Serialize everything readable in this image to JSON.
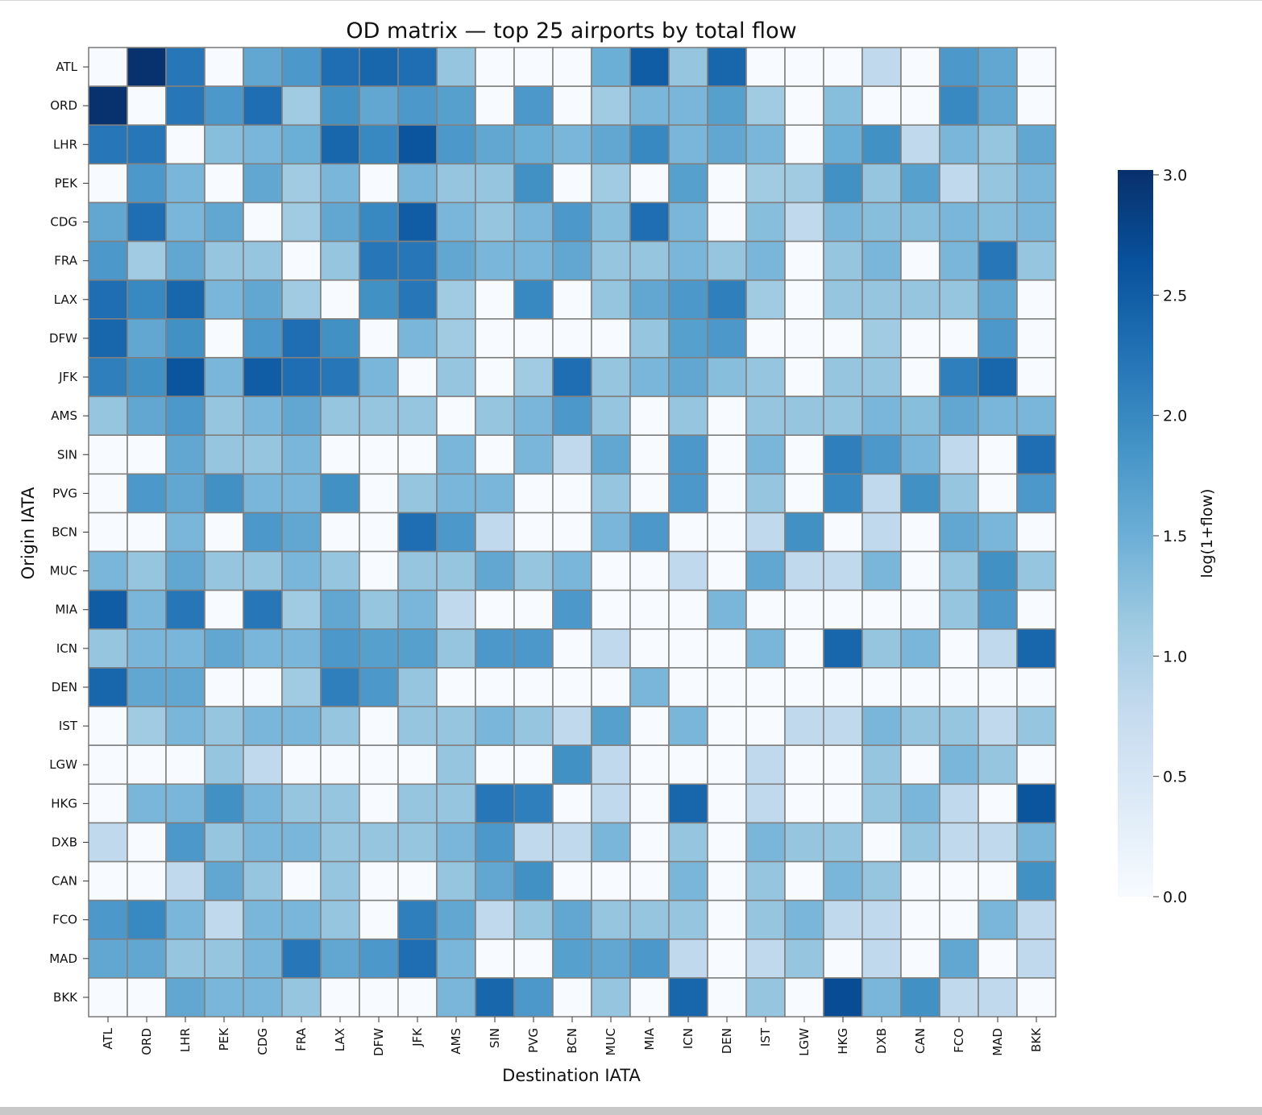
{
  "chart_data": {
    "type": "heatmap",
    "title": "OD matrix — top 25 airports by total flow",
    "xlabel": "Destination IATA",
    "ylabel": "Origin IATA",
    "colorbar_label": "log(1+flow)",
    "colorbar_ticks": [
      "0.0",
      "0.5",
      "1.0",
      "1.5",
      "2.0",
      "2.5",
      "3.0"
    ],
    "value_range": [
      0,
      3.02
    ],
    "colormap": [
      "#f7fbff",
      "#deebf7",
      "#c6dbef",
      "#9ecae1",
      "#6baed6",
      "#4292c6",
      "#2171b5",
      "#08519c",
      "#08306b"
    ],
    "grid_color": "#808080",
    "rows": [
      "ATL",
      "ORD",
      "LHR",
      "PEK",
      "CDG",
      "FRA",
      "LAX",
      "DFW",
      "JFK",
      "AMS",
      "SIN",
      "PVG",
      "BCN",
      "MUC",
      "MIA",
      "ICN",
      "DEN",
      "IST",
      "LGW",
      "HKG",
      "DXB",
      "CAN",
      "FCO",
      "MAD",
      "BKK"
    ],
    "cols": [
      "ATL",
      "ORD",
      "LHR",
      "PEK",
      "CDG",
      "FRA",
      "LAX",
      "DFW",
      "JFK",
      "AMS",
      "SIN",
      "PVG",
      "BCN",
      "MUC",
      "MIA",
      "ICN",
      "DEN",
      "IST",
      "LGW",
      "HKG",
      "DXB",
      "CAN",
      "FCO",
      "MAD",
      "BKK"
    ],
    "values": [
      [
        0.0,
        3.0,
        2.2,
        0.0,
        1.6,
        1.8,
        2.3,
        2.4,
        2.3,
        1.2,
        0.0,
        0.0,
        0.0,
        1.5,
        2.5,
        1.2,
        2.4,
        0.0,
        0.0,
        0.0,
        0.8,
        0.0,
        1.8,
        1.6,
        0.0
      ],
      [
        3.0,
        0.0,
        2.2,
        1.8,
        2.3,
        1.1,
        1.9,
        1.6,
        1.8,
        1.7,
        0.0,
        1.8,
        0.0,
        1.1,
        1.4,
        1.4,
        1.7,
        1.1,
        0.0,
        1.3,
        0.0,
        0.0,
        2.0,
        1.6,
        0.0
      ],
      [
        2.2,
        2.2,
        0.0,
        1.3,
        1.4,
        1.5,
        2.4,
        2.0,
        2.6,
        1.8,
        1.6,
        1.5,
        1.4,
        1.6,
        2.0,
        1.4,
        1.6,
        1.4,
        0.0,
        1.5,
        1.9,
        0.8,
        1.4,
        1.2,
        1.6
      ],
      [
        0.0,
        1.8,
        1.4,
        0.0,
        1.6,
        1.1,
        1.4,
        0.0,
        1.4,
        1.2,
        1.2,
        1.9,
        0.0,
        1.1,
        0.0,
        1.7,
        0.0,
        1.1,
        1.1,
        1.9,
        1.2,
        1.7,
        0.8,
        1.2,
        1.4
      ],
      [
        1.6,
        2.3,
        1.4,
        1.6,
        0.0,
        1.1,
        1.6,
        2.0,
        2.5,
        1.4,
        1.2,
        1.4,
        1.8,
        1.3,
        2.3,
        1.4,
        0.0,
        1.3,
        0.8,
        1.4,
        1.3,
        1.3,
        1.4,
        1.3,
        1.4
      ],
      [
        1.8,
        1.1,
        1.6,
        1.2,
        1.2,
        0.0,
        1.2,
        2.2,
        2.2,
        1.6,
        1.4,
        1.4,
        1.6,
        1.2,
        1.2,
        1.4,
        1.2,
        1.4,
        0.0,
        1.2,
        1.4,
        0.0,
        1.4,
        2.2,
        1.2
      ],
      [
        2.3,
        2.0,
        2.4,
        1.4,
        1.6,
        1.1,
        0.0,
        1.9,
        2.2,
        1.1,
        0.0,
        2.0,
        0.0,
        1.2,
        1.6,
        1.8,
        2.1,
        1.1,
        0.0,
        1.2,
        1.2,
        1.2,
        1.2,
        1.6,
        0.0
      ],
      [
        2.4,
        1.6,
        1.9,
        0.0,
        1.8,
        2.3,
        1.9,
        0.0,
        1.4,
        1.1,
        0.0,
        0.0,
        0.0,
        0.0,
        1.2,
        1.7,
        1.8,
        0.0,
        0.0,
        0.0,
        1.1,
        0.0,
        0.0,
        1.8,
        0.0
      ],
      [
        2.1,
        1.9,
        2.6,
        1.4,
        2.5,
        2.3,
        2.2,
        1.4,
        0.0,
        1.2,
        0.0,
        1.1,
        2.3,
        1.2,
        1.4,
        1.6,
        1.3,
        1.2,
        0.0,
        1.2,
        1.2,
        0.0,
        2.1,
        2.4,
        0.0
      ],
      [
        1.2,
        1.6,
        1.8,
        1.2,
        1.4,
        1.6,
        1.2,
        1.2,
        1.2,
        0.0,
        1.2,
        1.4,
        1.8,
        1.2,
        0.0,
        1.2,
        0.0,
        1.2,
        1.2,
        1.2,
        1.4,
        1.3,
        1.6,
        1.4,
        1.4
      ],
      [
        0.0,
        0.0,
        1.6,
        1.2,
        1.2,
        1.4,
        0.0,
        0.0,
        0.0,
        1.4,
        0.0,
        1.4,
        0.8,
        1.6,
        0.0,
        1.8,
        0.0,
        1.4,
        0.0,
        2.1,
        1.8,
        1.4,
        0.8,
        0.0,
        2.3
      ],
      [
        0.0,
        1.8,
        1.6,
        1.9,
        1.4,
        1.4,
        1.9,
        0.0,
        1.2,
        1.4,
        1.4,
        0.0,
        0.0,
        1.2,
        0.0,
        1.8,
        0.0,
        1.2,
        0.0,
        2.0,
        0.8,
        1.9,
        1.2,
        0.0,
        1.8
      ],
      [
        0.0,
        0.0,
        1.4,
        0.0,
        1.8,
        1.6,
        0.0,
        0.0,
        2.3,
        1.8,
        0.8,
        0.0,
        0.0,
        1.4,
        1.8,
        0.0,
        0.0,
        0.8,
        1.9,
        0.0,
        0.8,
        0.0,
        1.6,
        1.4,
        0.0
      ],
      [
        1.4,
        1.2,
        1.6,
        1.2,
        1.2,
        1.4,
        1.2,
        0.0,
        1.2,
        1.2,
        1.6,
        1.2,
        1.4,
        0.0,
        0.0,
        0.8,
        0.0,
        1.6,
        0.8,
        0.8,
        1.4,
        0.0,
        1.2,
        1.9,
        1.2
      ],
      [
        2.5,
        1.4,
        2.2,
        0.0,
        2.2,
        1.1,
        1.6,
        1.2,
        1.4,
        0.8,
        0.0,
        0.0,
        1.8,
        0.0,
        0.0,
        0.0,
        1.4,
        0.0,
        0.0,
        0.0,
        0.0,
        0.0,
        1.2,
        1.8,
        0.0
      ],
      [
        1.2,
        1.4,
        1.4,
        1.6,
        1.4,
        1.4,
        1.8,
        1.7,
        1.7,
        1.2,
        1.8,
        1.8,
        0.0,
        0.8,
        0.0,
        0.0,
        0.0,
        1.4,
        0.0,
        2.4,
        1.2,
        1.4,
        0.0,
        0.8,
        2.4
      ],
      [
        2.4,
        1.6,
        1.6,
        0.0,
        0.0,
        1.1,
        2.1,
        1.8,
        1.2,
        0.0,
        0.0,
        0.0,
        0.0,
        0.0,
        1.4,
        0.0,
        0.0,
        0.0,
        0.0,
        0.0,
        0.0,
        0.0,
        0.0,
        0.0,
        0.0
      ],
      [
        0.0,
        1.1,
        1.4,
        1.2,
        1.4,
        1.4,
        1.2,
        0.0,
        1.2,
        1.2,
        1.4,
        1.2,
        0.8,
        1.7,
        0.0,
        1.4,
        0.0,
        0.0,
        0.8,
        0.8,
        1.4,
        1.2,
        1.2,
        0.8,
        1.2
      ],
      [
        0.0,
        0.0,
        0.0,
        1.2,
        0.8,
        0.0,
        0.0,
        0.0,
        0.0,
        1.2,
        0.0,
        0.0,
        1.9,
        0.8,
        0.0,
        0.0,
        0.0,
        0.8,
        0.0,
        0.0,
        1.2,
        0.0,
        1.4,
        1.2,
        0.0
      ],
      [
        0.0,
        1.4,
        1.4,
        1.9,
        1.4,
        1.2,
        1.2,
        0.0,
        1.2,
        1.2,
        2.2,
        2.1,
        0.0,
        0.8,
        0.0,
        2.4,
        0.0,
        0.8,
        0.0,
        0.0,
        1.2,
        1.4,
        0.8,
        0.0,
        2.6
      ],
      [
        0.8,
        0.0,
        1.8,
        1.2,
        1.4,
        1.4,
        1.2,
        1.2,
        1.2,
        1.4,
        1.8,
        0.8,
        0.8,
        1.4,
        0.0,
        1.2,
        0.0,
        1.4,
        1.2,
        1.2,
        0.0,
        1.2,
        0.8,
        0.8,
        1.4
      ],
      [
        0.0,
        0.0,
        0.8,
        1.6,
        1.2,
        0.0,
        1.2,
        0.0,
        0.0,
        1.2,
        1.6,
        1.9,
        0.0,
        0.0,
        0.0,
        1.4,
        0.0,
        1.2,
        0.0,
        1.4,
        1.2,
        0.0,
        0.0,
        0.0,
        1.9
      ],
      [
        1.8,
        2.0,
        1.4,
        0.8,
        1.4,
        1.4,
        1.2,
        0.0,
        2.1,
        1.6,
        0.8,
        1.2,
        1.6,
        1.2,
        1.2,
        1.2,
        0.0,
        1.2,
        1.4,
        0.8,
        0.8,
        0.0,
        0.0,
        1.4,
        0.8
      ],
      [
        1.6,
        1.6,
        1.2,
        1.2,
        1.4,
        2.2,
        1.6,
        1.8,
        2.3,
        1.4,
        0.0,
        0.0,
        1.7,
        1.6,
        1.8,
        0.8,
        0.0,
        0.8,
        1.2,
        0.0,
        0.8,
        0.0,
        1.6,
        0.0,
        0.8
      ],
      [
        0.0,
        0.0,
        1.6,
        1.4,
        1.4,
        1.2,
        0.0,
        0.0,
        0.0,
        1.4,
        2.4,
        1.8,
        0.0,
        1.2,
        0.0,
        2.4,
        0.0,
        1.2,
        0.0,
        2.7,
        1.4,
        1.9,
        0.8,
        0.8,
        0.0
      ]
    ]
  }
}
